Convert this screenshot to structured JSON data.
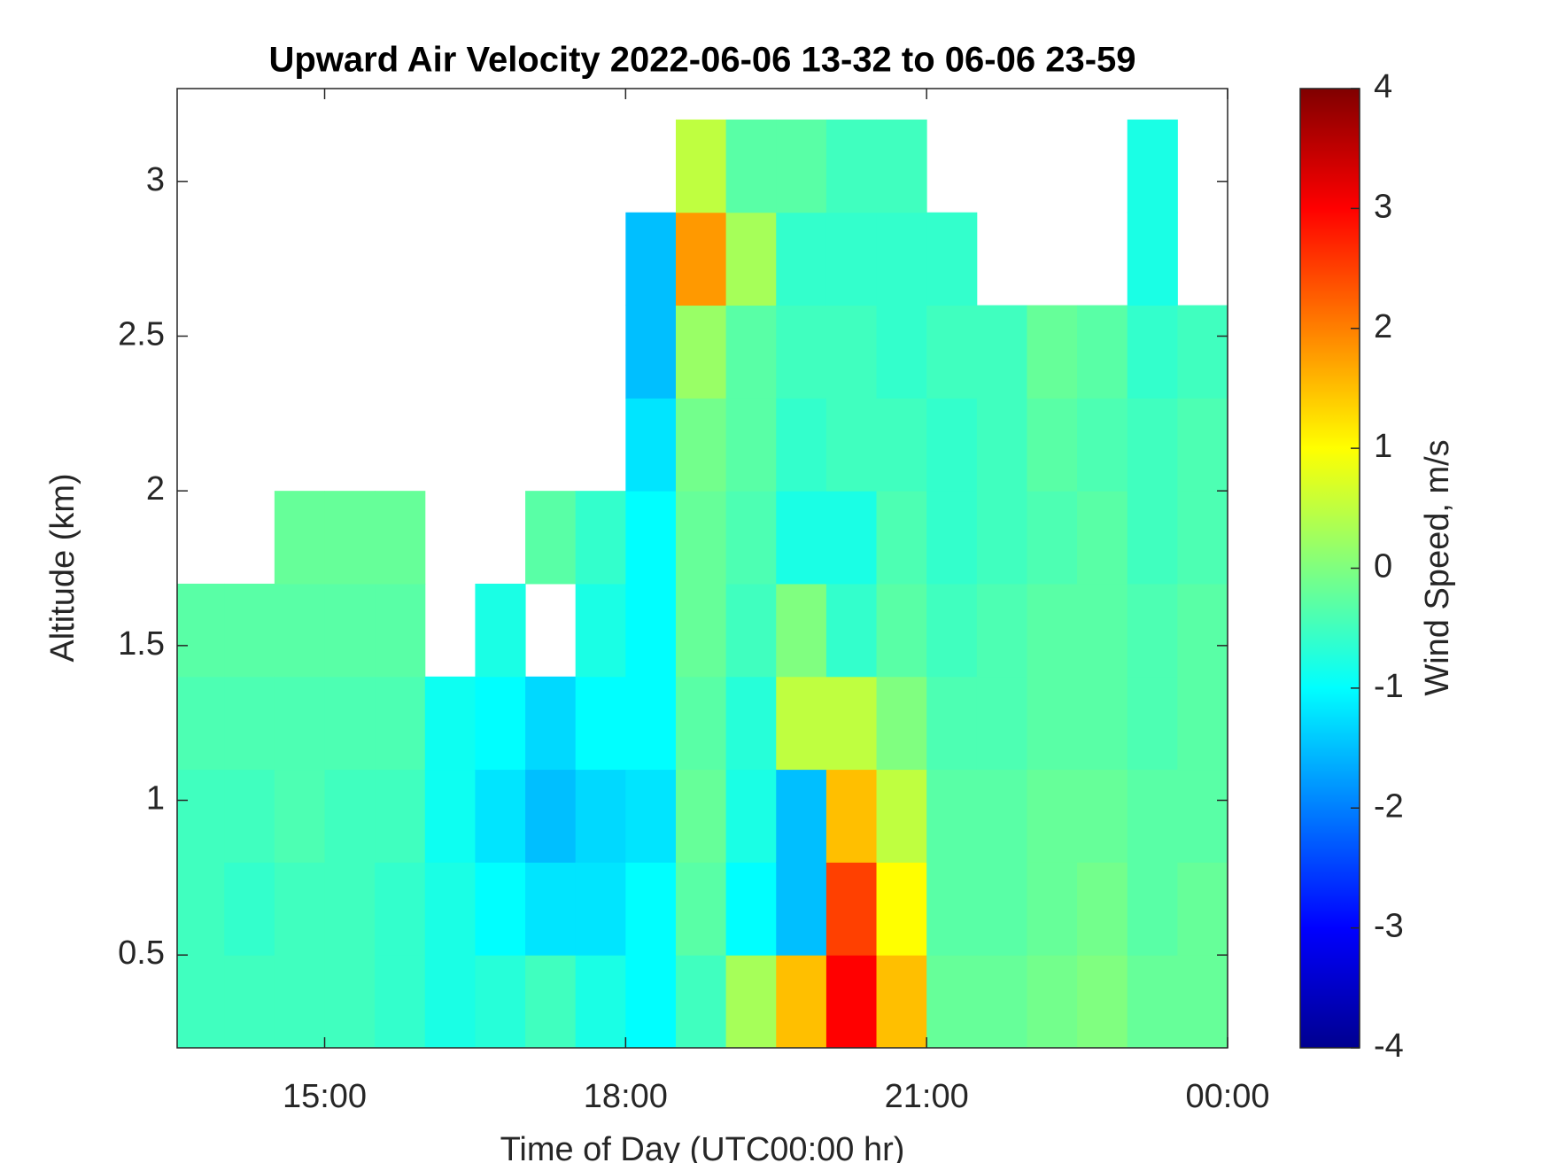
{
  "chart_data": {
    "type": "heatmap",
    "title": "Upward Air Velocity 2022-06-06 13-32 to 06-06 23-59",
    "x_label": "Time of Day (UTC00:00 hr)",
    "y_label": "Altitude (km)",
    "colorbar_label": "Wind Speed, m/s",
    "colormap": "jet",
    "x": [
      13.75,
      14.25,
      14.75,
      15.25,
      15.75,
      16.25,
      16.75,
      17.25,
      17.75,
      18.25,
      18.75,
      19.25,
      19.75,
      20.25,
      20.75,
      21.25,
      21.75,
      22.25,
      22.75,
      23.25,
      23.75
    ],
    "y": [
      0.35,
      0.65,
      0.95,
      1.25,
      1.55,
      1.85,
      2.15,
      2.45,
      2.75,
      3.05
    ],
    "values": [
      [
        -0.5,
        -0.5,
        -0.5,
        -0.4,
        -0.3,
        null,
        null,
        null,
        null,
        null
      ],
      [
        -0.5,
        -0.6,
        -0.5,
        -0.4,
        -0.3,
        null,
        null,
        null,
        null,
        null
      ],
      [
        -0.5,
        -0.5,
        -0.4,
        -0.4,
        -0.3,
        -0.2,
        null,
        null,
        null,
        null
      ],
      [
        -0.5,
        -0.5,
        -0.5,
        -0.4,
        -0.3,
        -0.2,
        null,
        null,
        null,
        null
      ],
      [
        -0.6,
        -0.6,
        -0.5,
        -0.4,
        -0.3,
        -0.2,
        null,
        null,
        null,
        null
      ],
      [
        -0.8,
        -0.8,
        -0.9,
        -0.9,
        null,
        null,
        null,
        null,
        null,
        null
      ],
      [
        -0.7,
        -1.0,
        -1.2,
        -1.0,
        -0.8,
        null,
        null,
        null,
        null,
        null
      ],
      [
        -0.5,
        -1.2,
        -1.5,
        -1.3,
        null,
        -0.3,
        null,
        null,
        null,
        null
      ],
      [
        -0.8,
        -1.2,
        -1.3,
        -1.0,
        -0.8,
        -0.6,
        null,
        null,
        null,
        null
      ],
      [
        -1.0,
        -1.0,
        -1.2,
        -1.0,
        -1.0,
        -1.0,
        -1.2,
        -1.5,
        -1.5,
        null
      ],
      [
        -0.5,
        -0.3,
        -0.2,
        -0.3,
        -0.2,
        -0.2,
        -0.1,
        0.2,
        1.8,
        0.5
      ],
      [
        0.3,
        -1.0,
        -0.8,
        -0.7,
        -0.5,
        -0.4,
        -0.3,
        -0.3,
        0.3,
        -0.3
      ],
      [
        1.5,
        -1.5,
        -1.5,
        0.5,
        0,
        -0.8,
        -0.6,
        -0.5,
        -0.6,
        -0.3
      ],
      [
        3,
        2.5,
        1.5,
        0.5,
        -0.6,
        -0.8,
        -0.5,
        -0.5,
        -0.6,
        -0.5
      ],
      [
        1.5,
        1,
        0.5,
        0,
        -0.3,
        -0.4,
        -0.5,
        -0.6,
        -0.6,
        -0.5
      ],
      [
        -0.2,
        -0.3,
        -0.3,
        -0.4,
        -0.5,
        -0.6,
        -0.6,
        -0.5,
        -0.6,
        null
      ],
      [
        -0.2,
        -0.3,
        -0.3,
        -0.4,
        -0.4,
        -0.5,
        -0.5,
        -0.5,
        null,
        null
      ],
      [
        -0.1,
        -0.2,
        -0.2,
        -0.3,
        -0.3,
        -0.4,
        -0.3,
        -0.2,
        null,
        null
      ],
      [
        0,
        -0.1,
        -0.2,
        -0.3,
        -0.3,
        -0.3,
        -0.4,
        -0.3,
        null,
        null
      ],
      [
        -0.2,
        -0.3,
        -0.3,
        -0.4,
        -0.4,
        -0.5,
        -0.5,
        -0.6,
        -0.8,
        -0.8
      ],
      [
        -0.2,
        -0.2,
        -0.3,
        -0.3,
        -0.3,
        -0.4,
        -0.4,
        -0.5,
        null,
        null
      ]
    ],
    "xlim": [
      13.53,
      24
    ],
    "xticks": [
      {
        "value": 15,
        "label": "15:00"
      },
      {
        "value": 18,
        "label": "18:00"
      },
      {
        "value": 21,
        "label": "21:00"
      },
      {
        "value": 24,
        "label": "00:00"
      }
    ],
    "ylim": [
      0.2,
      3.3
    ],
    "yticks": [
      0.5,
      1,
      1.5,
      2,
      2.5,
      3
    ],
    "clim": [
      -4,
      4
    ],
    "cticks": [
      -4,
      -3,
      -2,
      -1,
      0,
      1,
      2,
      3,
      4
    ]
  }
}
